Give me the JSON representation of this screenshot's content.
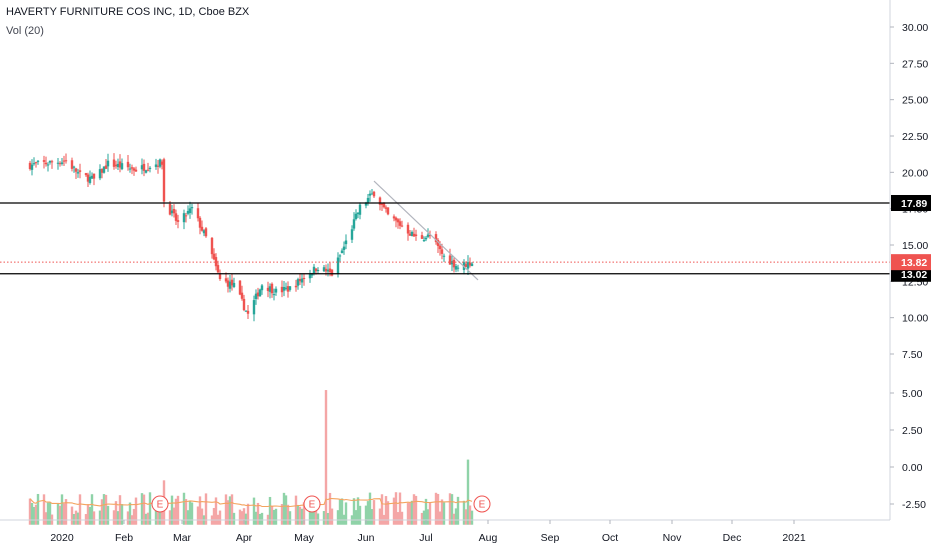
{
  "legend": {
    "title": "HAVERTY FURNITURE COS INC, 1D, Cboe BZX",
    "volume": "Vol (20)"
  },
  "colors": {
    "up": "#26a69a",
    "down": "#ef5350",
    "volume_up": "#8fd3a8",
    "volume_down": "#f4a6a6",
    "volume_ma": "#f4a460",
    "last_price": "#ef5350",
    "trendline": "#b2b5be",
    "level": "#000000"
  },
  "chart_data": {
    "type": "candlestick",
    "title": "HAVERTY FURNITURE COS INC, 1D, Cboe BZX",
    "x_tick_labels": [
      "2020",
      "Feb",
      "Mar",
      "Apr",
      "May",
      "Jun",
      "Jul",
      "Aug",
      "Sep",
      "Oct",
      "Nov",
      "Dec",
      "2021"
    ],
    "price_axis": {
      "ticks": [
        "30.00",
        "27.50",
        "25.00",
        "22.50",
        "20.00",
        "17.50",
        "15.00",
        "12.50",
        "10.00",
        "7.50"
      ],
      "range": [
        6.0,
        32.0
      ]
    },
    "volume_axis": {
      "ticks": [
        "5.00",
        "2.50",
        "0.00",
        "-2.50"
      ],
      "range": [
        -4.5,
        7.0
      ],
      "baseline": -3.9
    },
    "horizontal_levels": [
      {
        "value": 17.89,
        "label": "17.89"
      },
      {
        "value": 13.02,
        "label": "13.02"
      }
    ],
    "last_price": {
      "value": 13.82,
      "label": "13.82"
    },
    "trendline": {
      "from": {
        "date": "2020-06-05",
        "price": 19.4
      },
      "to": {
        "date": "2020-07-27",
        "price": 12.6
      }
    },
    "earnings_markers": [
      {
        "date": "2020-02-19",
        "label": "E"
      },
      {
        "date": "2020-05-05",
        "label": "E"
      },
      {
        "date": "2020-07-29",
        "label": "E"
      }
    ],
    "ohlc_checkpoints": [
      {
        "date": "2019-12-16",
        "close": 20.5
      },
      {
        "date": "2020-01-03",
        "close": 20.8
      },
      {
        "date": "2020-01-10",
        "close": 19.8
      },
      {
        "date": "2020-01-17",
        "close": 19.5
      },
      {
        "date": "2020-01-24",
        "close": 20.6
      },
      {
        "date": "2020-02-07",
        "close": 20.2
      },
      {
        "date": "2020-02-20",
        "close": 20.7
      },
      {
        "date": "2020-02-21",
        "close": 18.0
      },
      {
        "date": "2020-02-28",
        "close": 16.5
      },
      {
        "date": "2020-03-06",
        "close": 17.5
      },
      {
        "date": "2020-03-13",
        "close": 15.5
      },
      {
        "date": "2020-03-20",
        "close": 12.6
      },
      {
        "date": "2020-03-27",
        "close": 12.2
      },
      {
        "date": "2020-04-03",
        "close": 10.2
      },
      {
        "date": "2020-04-10",
        "close": 12.3
      },
      {
        "date": "2020-04-17",
        "close": 11.8
      },
      {
        "date": "2020-04-24",
        "close": 12.0
      },
      {
        "date": "2020-05-01",
        "close": 12.8
      },
      {
        "date": "2020-05-08",
        "close": 13.5
      },
      {
        "date": "2020-05-15",
        "close": 13.0
      },
      {
        "date": "2020-05-22",
        "close": 15.2
      },
      {
        "date": "2020-05-29",
        "close": 17.6
      },
      {
        "date": "2020-06-05",
        "close": 18.6
      },
      {
        "date": "2020-06-12",
        "close": 17.0
      },
      {
        "date": "2020-06-19",
        "close": 16.3
      },
      {
        "date": "2020-06-26",
        "close": 15.5
      },
      {
        "date": "2020-07-03",
        "close": 15.6
      },
      {
        "date": "2020-07-10",
        "close": 14.2
      },
      {
        "date": "2020-07-17",
        "close": 13.5
      },
      {
        "date": "2020-07-24",
        "close": 13.82
      }
    ],
    "volume_spikes": [
      {
        "date": "2020-05-12",
        "value": 5.2
      },
      {
        "date": "2020-07-22",
        "value": 0.5
      }
    ]
  }
}
